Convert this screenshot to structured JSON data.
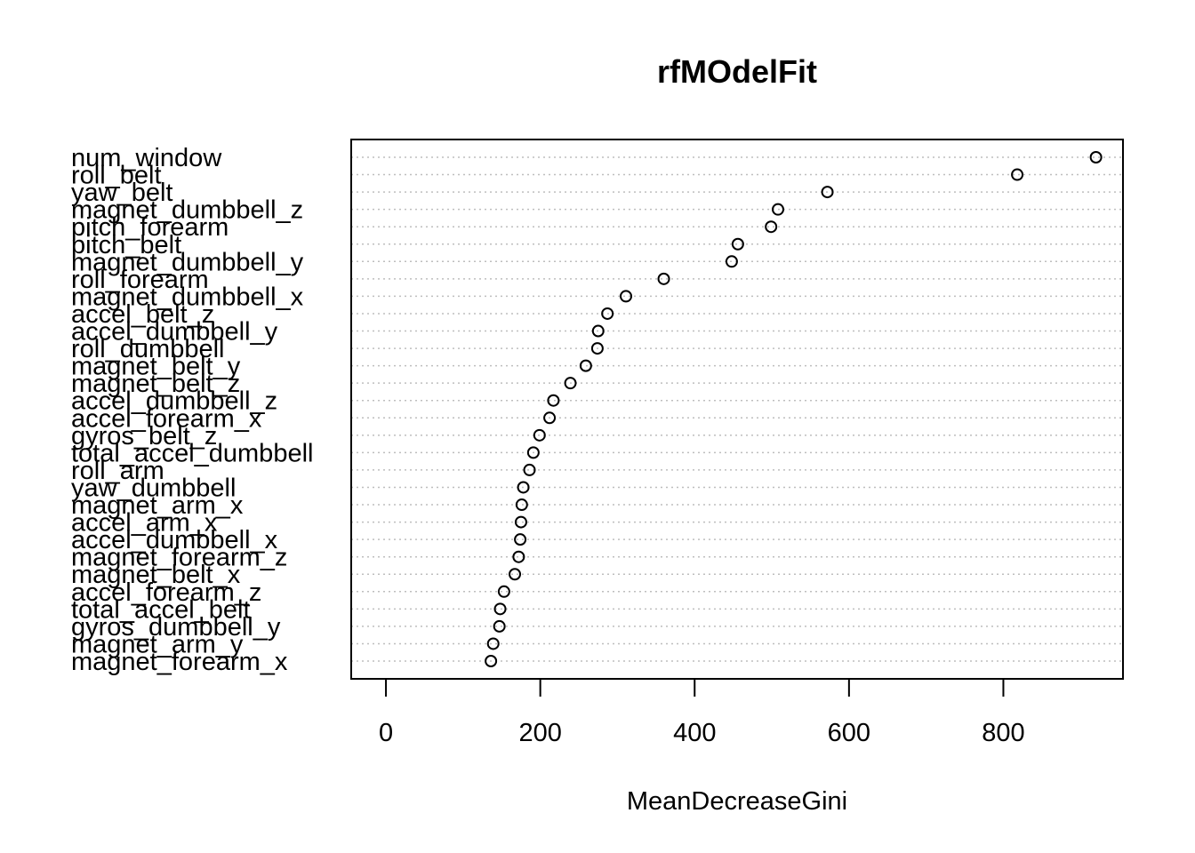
{
  "chart_data": {
    "type": "scatter",
    "title": "rfMOdelFit",
    "xlabel": "MeanDecreaseGini",
    "ylabel": "",
    "xlim": [
      -45,
      955
    ],
    "xticks": [
      0,
      200,
      400,
      600,
      800
    ],
    "xtick_labels": [
      "0",
      "200",
      "400",
      "600",
      "800"
    ],
    "grid": "horizontal-dotted",
    "marker": "open-circle",
    "items": [
      {
        "label": "num_window",
        "value": 920
      },
      {
        "label": "roll_belt",
        "value": 818
      },
      {
        "label": "yaw_belt",
        "value": 572
      },
      {
        "label": "magnet_dumbbell_z",
        "value": 508
      },
      {
        "label": "pitch_forearm",
        "value": 499
      },
      {
        "label": "pitch_belt",
        "value": 456
      },
      {
        "label": "magnet_dumbbell_y",
        "value": 448
      },
      {
        "label": "roll_forearm",
        "value": 360
      },
      {
        "label": "magnet_dumbbell_x",
        "value": 311
      },
      {
        "label": "accel_belt_z",
        "value": 287
      },
      {
        "label": "accel_dumbbell_y",
        "value": 275
      },
      {
        "label": "roll_dumbbell",
        "value": 274
      },
      {
        "label": "magnet_belt_y",
        "value": 259
      },
      {
        "label": "magnet_belt_z",
        "value": 239
      },
      {
        "label": "accel_dumbbell_z",
        "value": 217
      },
      {
        "label": "accel_forearm_x",
        "value": 212
      },
      {
        "label": "gyros_belt_z",
        "value": 199
      },
      {
        "label": "total_accel_dumbbell",
        "value": 191
      },
      {
        "label": "roll_arm",
        "value": 186
      },
      {
        "label": "yaw_dumbbell",
        "value": 178
      },
      {
        "label": "magnet_arm_x",
        "value": 176
      },
      {
        "label": "accel_arm_x",
        "value": 175
      },
      {
        "label": "accel_dumbbell_x",
        "value": 174
      },
      {
        "label": "magnet_forearm_z",
        "value": 172
      },
      {
        "label": "magnet_belt_x",
        "value": 167
      },
      {
        "label": "accel_forearm_z",
        "value": 153
      },
      {
        "label": "total_accel_belt",
        "value": 148
      },
      {
        "label": "gyros_dumbbell_y",
        "value": 147
      },
      {
        "label": "magnet_arm_y",
        "value": 139
      },
      {
        "label": "magnet_forearm_x",
        "value": 136
      }
    ]
  }
}
